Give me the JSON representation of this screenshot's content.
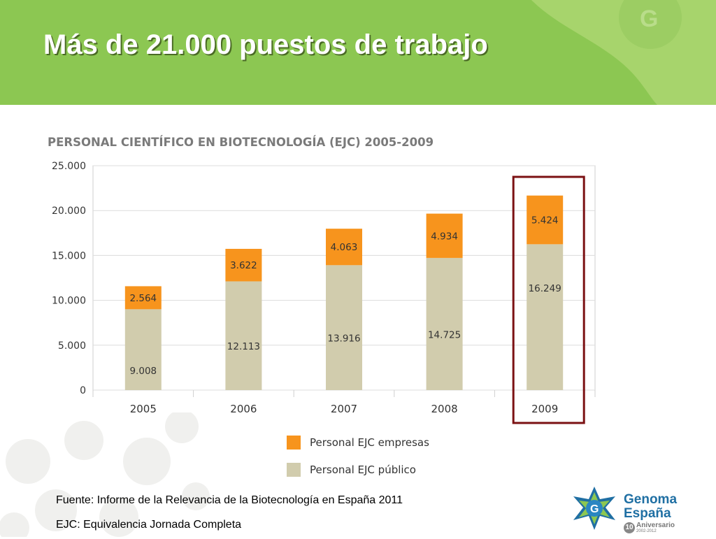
{
  "slide": {
    "title": "Más de 21.000 puestos de trabajo",
    "footnote_source": "Fuente: Informe de la Relevancia de la Biotecnología en España 2011",
    "footnote_ejc": "EJC: Equivalencia Jornada Completa"
  },
  "colors": {
    "header_green": "#8cc752",
    "empresas": "#f7941d",
    "publico": "#d1ccad",
    "highlight_box": "#7b1113",
    "logo_blue": "#1f6fa3"
  },
  "logo": {
    "icon_letter": "G",
    "name_line1": "Genoma",
    "name_line2": "España",
    "badge": "10",
    "anniversary": "Aniversario",
    "years": "2002-2012"
  },
  "chart_data": {
    "type": "bar",
    "stacked": true,
    "title": "PERSONAL CIENTÍFICO EN BIOTECNOLOGÍA (EJC) 2005-2009",
    "categories": [
      "2005",
      "2006",
      "2007",
      "2008",
      "2009"
    ],
    "series": [
      {
        "name": "Personal EJC público",
        "values": [
          9008,
          12113,
          13916,
          14725,
          16249
        ],
        "labels": [
          "9.008",
          "12.113",
          "13.916",
          "14.725",
          "16.249"
        ],
        "color": "#d1ccad"
      },
      {
        "name": "Personal EJC empresas",
        "values": [
          2564,
          3622,
          4063,
          4934,
          5424
        ],
        "labels": [
          "2.564",
          "3.622",
          "4.063",
          "4.934",
          "5.424"
        ],
        "color": "#f7941d"
      }
    ],
    "ylim": [
      0,
      25000
    ],
    "yticks": [
      "0",
      "5.000",
      "10.000",
      "15.000",
      "20.000",
      "25.000"
    ],
    "grid": true,
    "legend": "bottom",
    "highlighted_category": "2009"
  }
}
